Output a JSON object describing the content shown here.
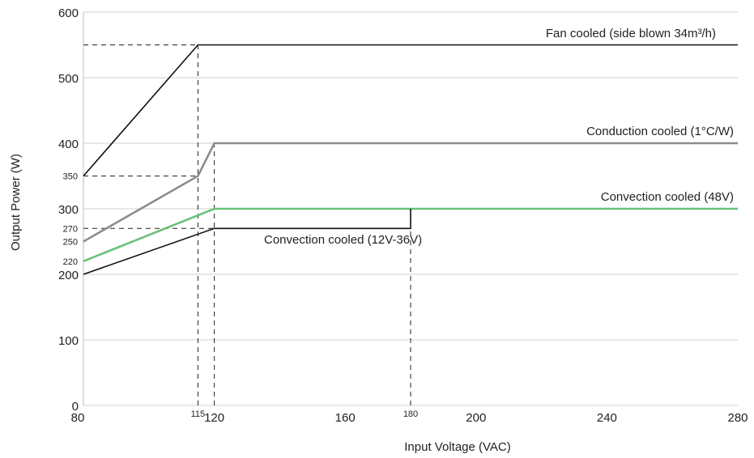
{
  "chart_data": {
    "type": "line",
    "xlabel": "Input Voltage (VAC)",
    "ylabel": "Output Power (W)",
    "xlim": [
      80,
      280
    ],
    "ylim": [
      0,
      600
    ],
    "grid": {
      "horizontal": true,
      "vertical": false
    },
    "x_ticks": [
      {
        "value": 80,
        "label": "80",
        "minor": false
      },
      {
        "value": 115,
        "label": "115",
        "minor": true
      },
      {
        "value": 120,
        "label": "120",
        "minor": false
      },
      {
        "value": 160,
        "label": "160",
        "minor": false
      },
      {
        "value": 180,
        "label": "180",
        "minor": true
      },
      {
        "value": 200,
        "label": "200",
        "minor": false
      },
      {
        "value": 240,
        "label": "240",
        "minor": false
      },
      {
        "value": 280,
        "label": "280",
        "minor": false
      }
    ],
    "y_ticks": [
      {
        "value": 0,
        "label": "0",
        "minor": false
      },
      {
        "value": 100,
        "label": "100",
        "minor": false
      },
      {
        "value": 200,
        "label": "200",
        "minor": false
      },
      {
        "value": 220,
        "label": "220",
        "minor": true
      },
      {
        "value": 250,
        "label": "250",
        "minor": true
      },
      {
        "value": 270,
        "label": "270",
        "minor": true
      },
      {
        "value": 300,
        "label": "300",
        "minor": false
      },
      {
        "value": 350,
        "label": "350",
        "minor": true
      },
      {
        "value": 400,
        "label": "400",
        "minor": false
      },
      {
        "value": 500,
        "label": "500",
        "minor": false
      },
      {
        "value": 600,
        "label": "600",
        "minor": false
      }
    ],
    "series": [
      {
        "name": "Fan cooled (side blown 34m³/h)",
        "color": "#111111",
        "x": [
          80,
          115,
          280
        ],
        "y": [
          350,
          550,
          550
        ]
      },
      {
        "name": "Conduction cooled (1°C/W)",
        "color": "#8c8c8c",
        "x": [
          80,
          115,
          120,
          280
        ],
        "y": [
          250,
          350,
          400,
          400
        ]
      },
      {
        "name": "Convection cooled (48V)",
        "color": "#6cc07a",
        "x": [
          80,
          120,
          280
        ],
        "y": [
          220,
          300,
          300
        ]
      },
      {
        "name": "Convection cooled (12V-36V)",
        "color": "#111111",
        "x": [
          80,
          120,
          180,
          180
        ],
        "y": [
          200,
          270,
          270,
          300
        ]
      }
    ],
    "reference_lines": [
      {
        "x": [
          80,
          115
        ],
        "y": [
          550,
          550
        ]
      },
      {
        "x": [
          115,
          115
        ],
        "y": [
          0,
          550
        ]
      },
      {
        "x": [
          80,
          115
        ],
        "y": [
          350,
          350
        ]
      },
      {
        "x": [
          120,
          120
        ],
        "y": [
          0,
          400
        ]
      },
      {
        "x": [
          80,
          120
        ],
        "y": [
          270,
          270
        ]
      },
      {
        "x": [
          180,
          180
        ],
        "y": [
          0,
          270
        ]
      }
    ]
  }
}
